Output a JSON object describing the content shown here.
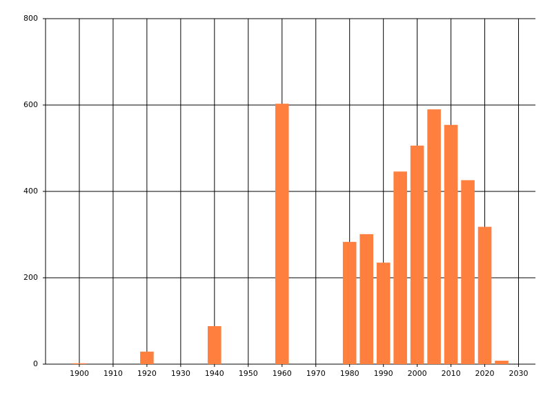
{
  "chart_data": {
    "type": "bar",
    "x": [
      1900,
      1920,
      1940,
      1960,
      1980,
      1985,
      1990,
      1995,
      2000,
      2005,
      2010,
      2015,
      2020,
      2025
    ],
    "values": [
      2,
      29,
      88,
      603,
      283,
      301,
      235,
      446,
      506,
      590,
      554,
      426,
      318,
      8
    ],
    "color": "#ff7f3f",
    "xlim": [
      1890,
      2035
    ],
    "xticks": [
      1900,
      1910,
      1920,
      1930,
      1940,
      1950,
      1960,
      1970,
      1980,
      1990,
      2000,
      2010,
      2020,
      2030
    ],
    "ylim": [
      0,
      800
    ],
    "yticks": [
      0,
      200,
      400,
      600,
      800
    ],
    "grid": true
  }
}
